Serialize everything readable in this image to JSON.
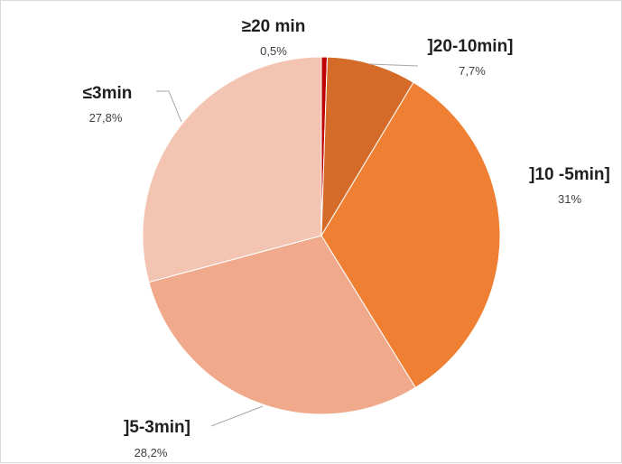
{
  "chart_data": {
    "type": "pie",
    "title": "",
    "slices": [
      {
        "label": "≥20 min",
        "value": 0.5,
        "value_label": "0,5%",
        "color": "#c00000"
      },
      {
        "label": "]20-10min]",
        "value": 7.7,
        "value_label": "7,7%",
        "color": "#d56b28"
      },
      {
        "label": "]10 -5min]",
        "value": 31,
        "value_label": "31%",
        "color": "#ef8033"
      },
      {
        "label": "]5-3min]",
        "value": 28.2,
        "value_label": "28,2%",
        "color": "#f0a98a"
      },
      {
        "label": "≤3min",
        "value": 27.8,
        "value_label": "27,8%",
        "color": "#f4c4b2"
      }
    ],
    "start_angle": "12 o'clock",
    "direction": "clockwise",
    "legend": "none",
    "data_labels": "outside with leader lines"
  }
}
